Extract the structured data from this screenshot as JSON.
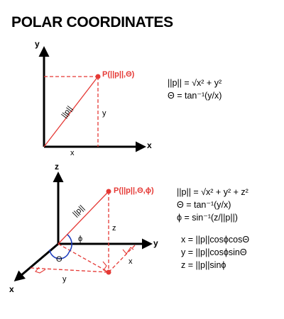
{
  "title": "POLAR COORDINATES",
  "colors": {
    "accent": "#e53935",
    "axis": "#000000",
    "angle_arc": "#1f3fbf"
  },
  "diagram_2d": {
    "axis_y": "y",
    "axis_x": "x",
    "point_label": "P(||p||,Θ)",
    "radius_label": "||p||",
    "vertical_label": "y",
    "horizontal_label": "x",
    "formulas": [
      "||p|| = √x² + y²",
      "Θ = tan⁻¹(y/x)"
    ]
  },
  "diagram_3d": {
    "axis_z": "z",
    "axis_y": "y",
    "axis_x": "x",
    "point_label": "P(||p||,Θ,ϕ)",
    "radius_label": "||p||",
    "phi_label": "ϕ",
    "theta_label": "Θ",
    "vertical_label": "z",
    "proj_x_label": "x",
    "proj_y_label": "y",
    "formulas": [
      "||p|| = √x² + y² + z²",
      "Θ = tan⁻¹(y/x)",
      "ϕ = sin⁻¹(z/||p||)"
    ],
    "cartesian": [
      "x = ||p||cosϕcosΘ",
      "y = ||p||cosϕsinΘ",
      "z = ||p||sinϕ"
    ]
  }
}
